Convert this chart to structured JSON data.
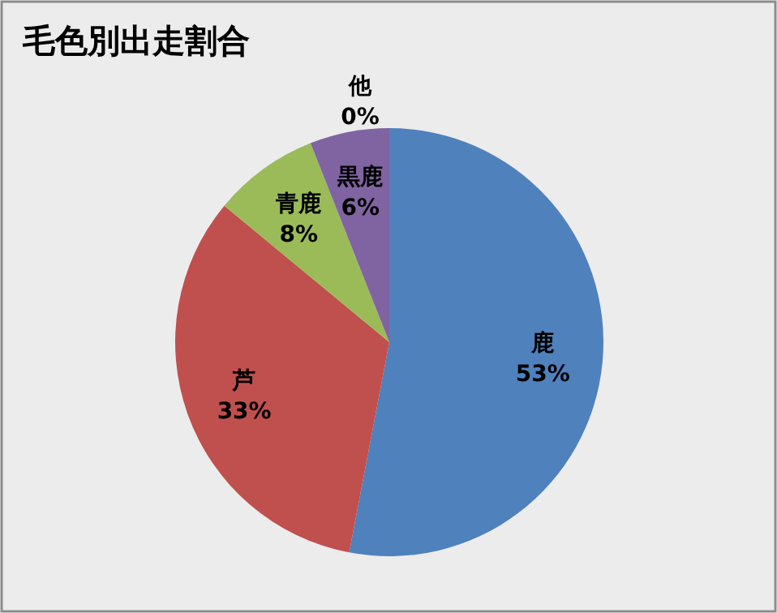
{
  "chart_data": {
    "type": "pie",
    "title": "毛色別出走割合",
    "categories": [
      "鹿",
      "芦",
      "青鹿",
      "黒鹿",
      "他"
    ],
    "values": [
      53,
      33,
      8,
      6,
      0
    ],
    "value_labels": [
      "53%",
      "33%",
      "8%",
      "6%",
      "0%"
    ],
    "colors": [
      "#4f81bd",
      "#c0504d",
      "#9bbb59",
      "#8064a2",
      "#4bacc6"
    ]
  }
}
